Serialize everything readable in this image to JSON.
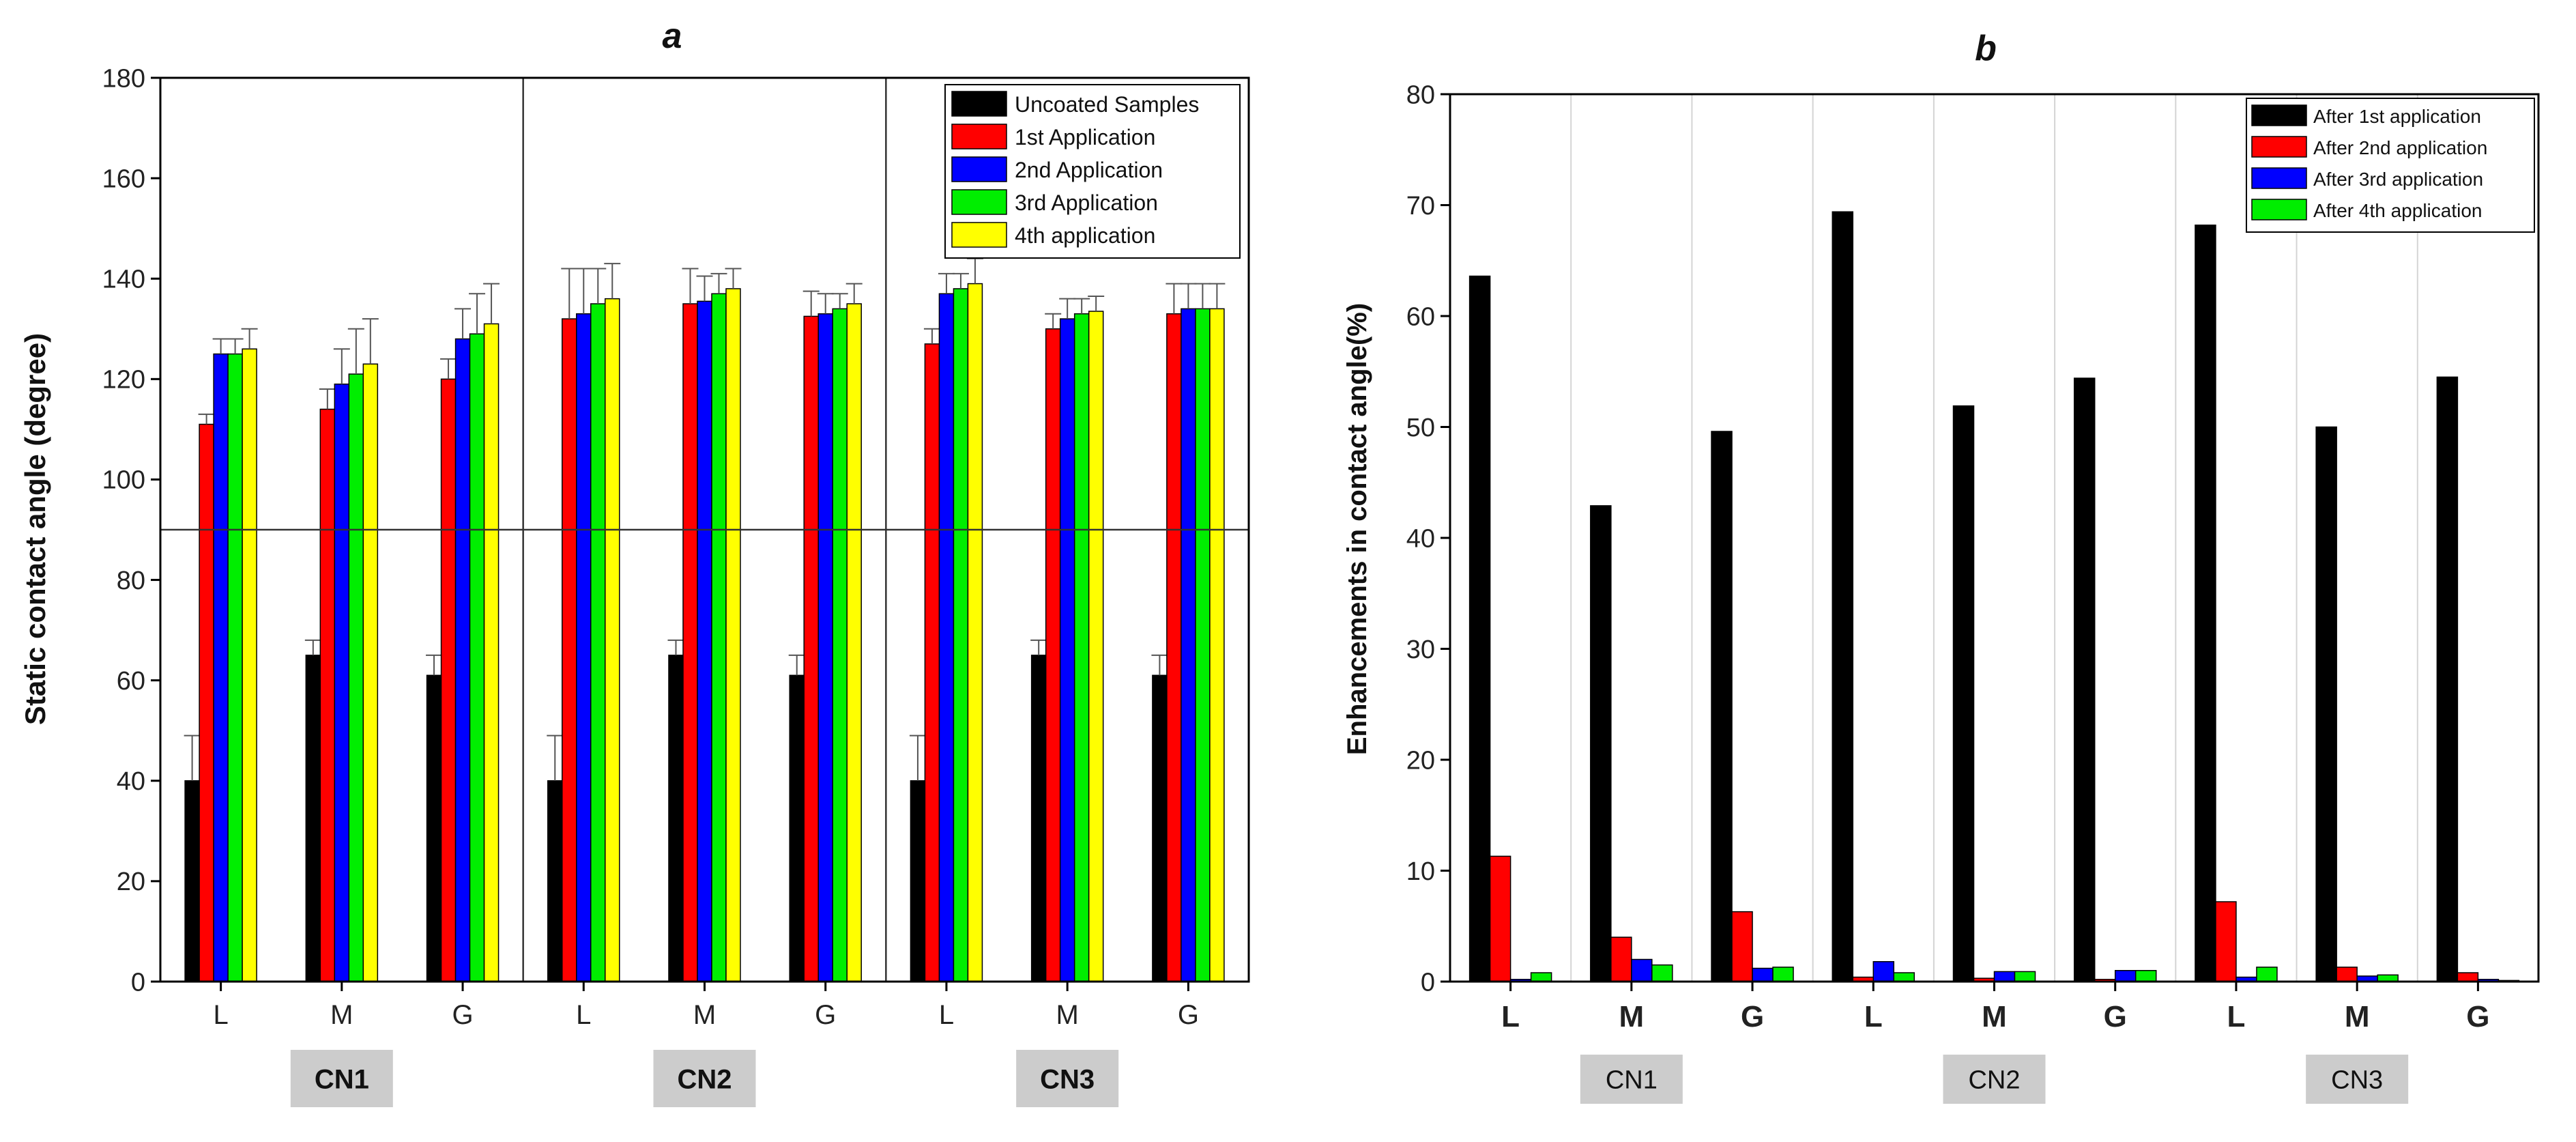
{
  "chart_data": [
    {
      "id": "a",
      "type": "bar",
      "title": "a",
      "xlabel": "",
      "ylabel": "Static contact angle (degree)",
      "ylim": [
        0,
        180
      ],
      "yticks": [
        0,
        20,
        40,
        60,
        80,
        100,
        120,
        140,
        160,
        180
      ],
      "reference_line": 90,
      "categories": [
        "L",
        "M",
        "G",
        "L",
        "M",
        "G",
        "L",
        "M",
        "G"
      ],
      "groups": [
        "CN1",
        "CN2",
        "CN3"
      ],
      "error_bars": true,
      "grid": false,
      "legend_position": "top-right",
      "series": [
        {
          "name": "Uncoated Samples",
          "color": "#000000",
          "values": [
            40,
            65,
            61,
            40,
            65,
            61,
            40,
            65,
            61
          ],
          "errors": [
            9,
            3,
            4,
            9,
            3,
            4,
            9,
            3,
            4
          ]
        },
        {
          "name": "1st Application",
          "color": "#ff0000",
          "values": [
            111,
            114,
            120,
            132,
            135,
            132.5,
            127,
            130,
            133
          ],
          "errors": [
            2,
            4,
            4,
            10,
            7,
            5,
            3,
            3,
            6
          ]
        },
        {
          "name": "2nd Application",
          "color": "#0000ff",
          "values": [
            125,
            119,
            128,
            133,
            135.5,
            133,
            137,
            132,
            134
          ],
          "errors": [
            3,
            7,
            6,
            9,
            5,
            4,
            4,
            4,
            5
          ]
        },
        {
          "name": "3rd Application",
          "color": "#00ee00",
          "values": [
            125,
            121,
            129,
            135,
            137,
            134,
            138,
            133,
            134
          ],
          "errors": [
            3,
            9,
            8,
            7,
            4,
            3,
            3,
            3,
            5
          ]
        },
        {
          "name": "4th application",
          "color": "#ffff00",
          "values": [
            126,
            123,
            131,
            136,
            138,
            135,
            139,
            133.5,
            134
          ],
          "errors": [
            4,
            9,
            8,
            7,
            4,
            4,
            5,
            3,
            5
          ]
        }
      ]
    },
    {
      "id": "b",
      "type": "bar",
      "title": "b",
      "xlabel": "",
      "ylabel": "Enhancements in contact angle(%)",
      "ylim": [
        0,
        80
      ],
      "yticks": [
        0,
        10,
        20,
        30,
        40,
        50,
        60,
        70,
        80
      ],
      "categories": [
        "L",
        "M",
        "G",
        "L",
        "M",
        "G",
        "L",
        "M",
        "G"
      ],
      "groups": [
        "CN1",
        "CN2",
        "CN3"
      ],
      "grid": true,
      "legend_position": "top-right",
      "series": [
        {
          "name": "After 1st application",
          "color": "#000000",
          "values": [
            63.6,
            42.9,
            49.6,
            69.4,
            51.9,
            54.4,
            68.2,
            50.0,
            54.5
          ]
        },
        {
          "name": "After 2nd application",
          "color": "#ff0000",
          "values": [
            11.3,
            4.0,
            6.3,
            0.4,
            0.3,
            0.2,
            7.2,
            1.3,
            0.8
          ]
        },
        {
          "name": "After 3rd application",
          "color": "#0000ff",
          "values": [
            0.2,
            2.0,
            1.2,
            1.8,
            0.9,
            1.0,
            0.4,
            0.5,
            0.2
          ]
        },
        {
          "name": "After 4th application",
          "color": "#00ee00",
          "values": [
            0.8,
            1.5,
            1.3,
            0.8,
            0.9,
            1.0,
            1.3,
            0.6,
            0.1
          ]
        }
      ]
    }
  ]
}
